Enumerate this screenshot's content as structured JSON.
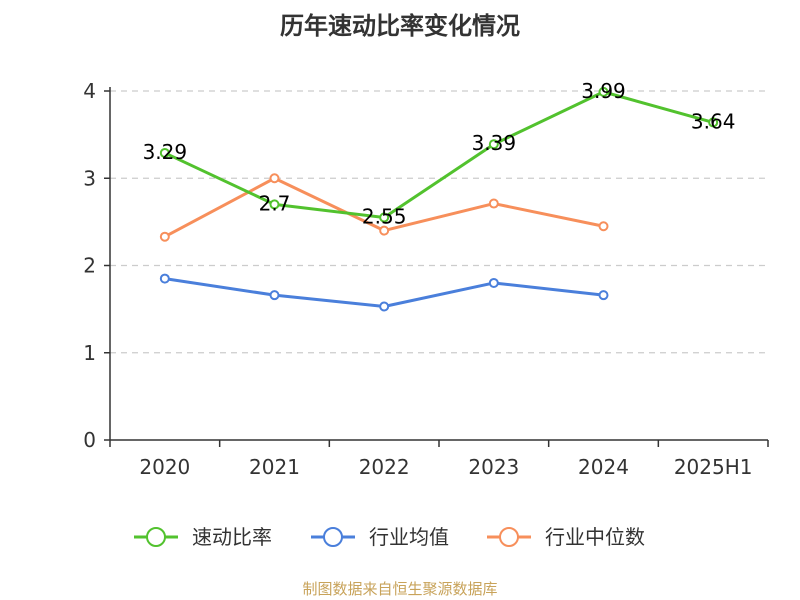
{
  "title": "历年速动比率变化情况",
  "source": "制图数据来自恒生聚源数据库",
  "colors": {
    "source_text": "#c8a35a"
  },
  "chart_data": {
    "type": "line",
    "categories": [
      "2020",
      "2021",
      "2022",
      "2023",
      "2024",
      "2025H1"
    ],
    "ylim": [
      0,
      4
    ],
    "yticks": [
      0,
      1,
      2,
      3,
      4
    ],
    "grid": true,
    "legend_position": "bottom",
    "series": [
      {
        "name": "速动比率",
        "color": "#52c22e",
        "values": [
          3.29,
          2.7,
          2.55,
          3.39,
          3.99,
          3.64
        ],
        "labels": [
          "3.29",
          "2.7",
          "2.55",
          "3.39",
          "3.99",
          "3.64"
        ]
      },
      {
        "name": "行业均值",
        "color": "#4a7fdb",
        "values": [
          1.85,
          1.66,
          1.53,
          1.8,
          1.66,
          null
        ]
      },
      {
        "name": "行业中位数",
        "color": "#f78f5b",
        "values": [
          2.33,
          3.0,
          2.4,
          2.71,
          2.45,
          null
        ]
      }
    ]
  }
}
